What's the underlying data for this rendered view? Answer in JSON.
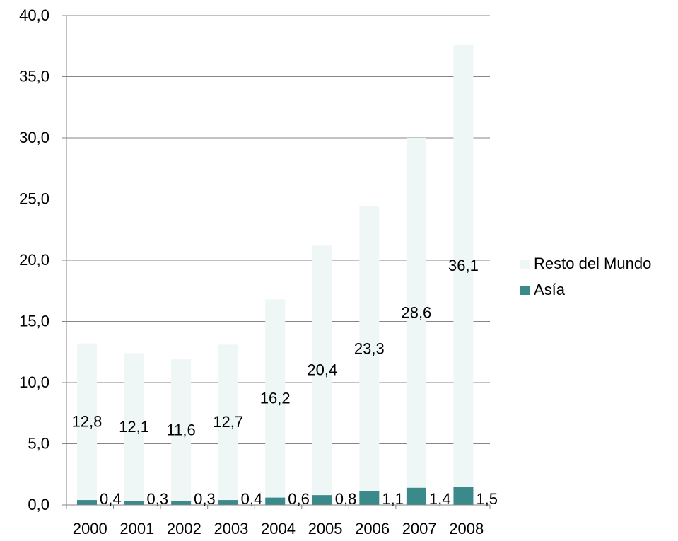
{
  "chart_data": {
    "type": "bar",
    "stacked": true,
    "categories": [
      "2000",
      "2001",
      "2002",
      "2003",
      "2004",
      "2005",
      "2006",
      "2007",
      "2008"
    ],
    "series": [
      {
        "name": "Asía",
        "values": [
          0.4,
          0.3,
          0.3,
          0.4,
          0.6,
          0.8,
          1.1,
          1.4,
          1.5
        ],
        "labels": [
          "0,4",
          "0,3",
          "0,3",
          "0,4",
          "0,6",
          "0,8",
          "1,1",
          "1,4",
          "1,5"
        ],
        "color": "#3a8a8c"
      },
      {
        "name": "Resto del Mundo",
        "values": [
          12.8,
          12.1,
          11.6,
          12.7,
          16.2,
          20.4,
          23.3,
          28.6,
          36.1
        ],
        "labels": [
          "12,8",
          "12,1",
          "11,6",
          "12,7",
          "16,2",
          "20,4",
          "23,3",
          "28,6",
          "36,1"
        ],
        "color": "#eef7f6"
      }
    ],
    "ylim": [
      0,
      40
    ],
    "yticks": [
      0,
      5,
      10,
      15,
      20,
      25,
      30,
      35,
      40
    ],
    "ytick_labels": [
      "0,0",
      "5,0",
      "10,0",
      "15,0",
      "20,0",
      "25,0",
      "30,0",
      "35,0",
      "40,0"
    ],
    "xlabel": "",
    "ylabel": "",
    "grid": true,
    "gridline_color": "#868686",
    "axis_color": "#868686",
    "legend_position": "right",
    "legend": [
      "Resto del Mundo",
      "Asía"
    ]
  }
}
